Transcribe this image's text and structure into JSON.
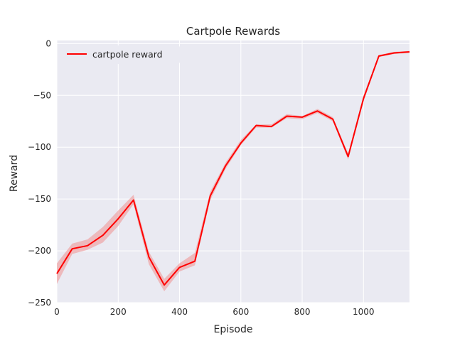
{
  "chart_data": {
    "type": "line",
    "title": "Cartpole Rewards",
    "xlabel": "Episode",
    "ylabel": "Reward",
    "xlim": [
      0,
      1150
    ],
    "ylim": [
      -250,
      3
    ],
    "xticks": [
      0,
      200,
      400,
      600,
      800,
      1000
    ],
    "yticks": [
      0,
      -50,
      -100,
      -150,
      -200,
      -250
    ],
    "xtick_labels": [
      "0",
      "200",
      "400",
      "600",
      "800",
      "1000"
    ],
    "ytick_labels": [
      "0",
      "−50",
      "−100",
      "−150",
      "−200",
      "−250"
    ],
    "grid": true,
    "legend_position": "top-left",
    "colors": {
      "line": "#ff0000",
      "band": "#ee9090",
      "background": "#eaeaf2",
      "grid": "#ffffff"
    },
    "series": [
      {
        "name": "cartpole reward",
        "x": [
          0,
          50,
          100,
          150,
          200,
          250,
          300,
          350,
          400,
          450,
          500,
          550,
          600,
          650,
          700,
          750,
          800,
          850,
          900,
          950,
          1000,
          1050,
          1100,
          1150
        ],
        "y": [
          -222,
          -198,
          -195,
          -185,
          -169,
          -151,
          -206,
          -233,
          -216,
          -210,
          -147,
          -118,
          -96,
          -79,
          -80,
          -70,
          -71,
          -65,
          -73,
          -109,
          -53,
          -12,
          -9,
          -8
        ],
        "lower": [
          -232,
          -203,
          -199,
          -192,
          -176,
          -155,
          -213,
          -239,
          -220,
          -214,
          -151,
          -121,
          -98,
          -81,
          -81,
          -72,
          -73,
          -67,
          -75,
          -112,
          -56,
          -13,
          -10,
          -9
        ],
        "upper": [
          -212,
          -193,
          -189,
          -177,
          -161,
          -146,
          -201,
          -227,
          -212,
          -202,
          -143,
          -115,
          -93,
          -78,
          -78,
          -68,
          -70,
          -63,
          -71,
          -106,
          -50,
          -11,
          -8,
          -7
        ]
      }
    ]
  }
}
